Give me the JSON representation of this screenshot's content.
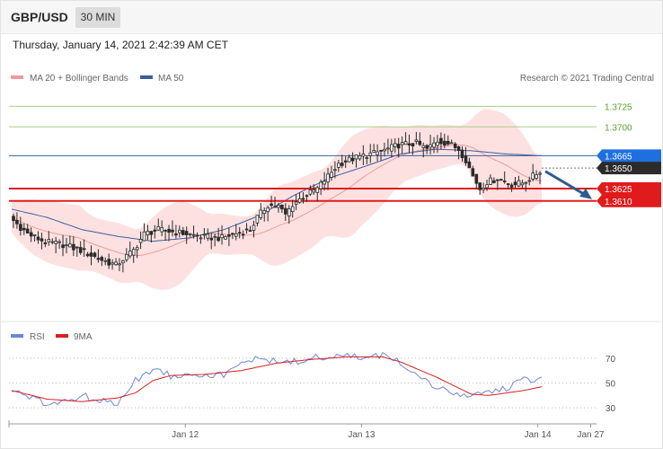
{
  "header": {
    "symbol": "GBP/USD",
    "timeframe": "30 MIN",
    "timestamp": "Thursday, January 14, 2021 2:42:39 AM CET"
  },
  "colors": {
    "bollinger_fill": "#fcd9d9",
    "ma20": "#f09a9a",
    "ma50": "#3a5f9e",
    "candle": "#2a2a2a",
    "resistance_green": "#a8d08a",
    "support_red": "#dd1e1e",
    "blue_label": "#1f6fe0",
    "dark_label": "#2b2b2b",
    "red_label": "#e01b1b",
    "rsi": "#6f86d6",
    "rsi_ma": "#d62020",
    "arrow": "#2e5a8f"
  },
  "chart_data": [
    {
      "type": "candlestick",
      "legend": [
        {
          "label": "MA 20 + Bollinger Bands",
          "color": "#f09a9a"
        },
        {
          "label": "MA 50",
          "color": "#3a5f9e"
        }
      ],
      "credit": "Research © 2021 Trading Central",
      "ylim": [
        1.3505,
        1.3745
      ],
      "levels": [
        {
          "value": 1.3725,
          "label": "1.3725",
          "style": "resistance"
        },
        {
          "value": 1.37,
          "label": "1.3700",
          "style": "resistance"
        },
        {
          "value": 1.3665,
          "label": "1.3665",
          "style": "ma50"
        },
        {
          "value": 1.365,
          "label": "1.3650",
          "style": "last"
        },
        {
          "value": 1.3625,
          "label": "1.3625",
          "style": "support"
        },
        {
          "value": 1.361,
          "label": "1.3610",
          "style": "support"
        }
      ],
      "close_path": [
        [
          0,
          1.359
        ],
        [
          5,
          1.357
        ],
        [
          10,
          1.356
        ],
        [
          15,
          1.3557
        ],
        [
          20,
          1.355
        ],
        [
          25,
          1.354
        ],
        [
          30,
          1.3532
        ],
        [
          35,
          1.355
        ],
        [
          38,
          1.357
        ],
        [
          42,
          1.3575
        ],
        [
          50,
          1.357
        ],
        [
          55,
          1.3566
        ],
        [
          60,
          1.3565
        ],
        [
          65,
          1.3572
        ],
        [
          68,
          1.3575
        ],
        [
          70,
          1.359
        ],
        [
          73,
          1.3605
        ],
        [
          76,
          1.3603
        ],
        [
          78,
          1.3593
        ],
        [
          80,
          1.3606
        ],
        [
          83,
          1.3615
        ],
        [
          87,
          1.3625
        ],
        [
          90,
          1.364
        ],
        [
          93,
          1.3655
        ],
        [
          96,
          1.366
        ],
        [
          100,
          1.3665
        ],
        [
          105,
          1.367
        ],
        [
          110,
          1.3678
        ],
        [
          115,
          1.368
        ],
        [
          118,
          1.3673
        ],
        [
          121,
          1.3683
        ],
        [
          124,
          1.368
        ],
        [
          127,
          1.3673
        ],
        [
          129,
          1.366
        ],
        [
          131,
          1.364
        ],
        [
          133,
          1.3625
        ],
        [
          135,
          1.3633
        ],
        [
          138,
          1.3637
        ],
        [
          142,
          1.363
        ],
        [
          145,
          1.3632
        ],
        [
          148,
          1.364
        ],
        [
          150,
          1.3646
        ]
      ],
      "ma50_path": [
        [
          0,
          1.36
        ],
        [
          10,
          1.359
        ],
        [
          20,
          1.3575
        ],
        [
          30,
          1.3567
        ],
        [
          40,
          1.3561
        ],
        [
          50,
          1.3565
        ],
        [
          60,
          1.3575
        ],
        [
          70,
          1.3592
        ],
        [
          80,
          1.3617
        ],
        [
          90,
          1.3638
        ],
        [
          100,
          1.3652
        ],
        [
          110,
          1.3667
        ],
        [
          115,
          1.367
        ],
        [
          120,
          1.3673
        ],
        [
          130,
          1.3671
        ],
        [
          140,
          1.3667
        ],
        [
          150,
          1.3665
        ]
      ],
      "n_candles": 150
    },
    {
      "type": "line",
      "legend": [
        {
          "label": "RSI",
          "color": "#6f86d6"
        },
        {
          "label": "9MA",
          "color": "#d62020"
        }
      ],
      "ylim": [
        20,
        80
      ],
      "y_ticks": [
        70,
        50,
        30
      ],
      "x_ticks": [
        {
          "label": "Jan 12",
          "pos": 0.3
        },
        {
          "label": "Jan 13",
          "pos": 0.6
        },
        {
          "label": "Jan 14",
          "pos": 0.9
        },
        {
          "label": "Jan 27",
          "pos": 0.99
        }
      ],
      "rsi_path": [
        [
          0,
          45
        ],
        [
          5,
          38
        ],
        [
          10,
          33
        ],
        [
          15,
          35
        ],
        [
          20,
          40
        ],
        [
          25,
          35
        ],
        [
          30,
          34
        ],
        [
          35,
          52
        ],
        [
          40,
          62
        ],
        [
          45,
          56
        ],
        [
          50,
          58
        ],
        [
          55,
          57
        ],
        [
          60,
          56
        ],
        [
          65,
          65
        ],
        [
          70,
          72
        ],
        [
          75,
          66
        ],
        [
          80,
          67
        ],
        [
          85,
          70
        ],
        [
          90,
          71
        ],
        [
          95,
          72
        ],
        [
          100,
          70
        ],
        [
          105,
          72
        ],
        [
          108,
          69
        ],
        [
          112,
          63
        ],
        [
          115,
          58
        ],
        [
          118,
          50
        ],
        [
          121,
          45
        ],
        [
          124,
          42
        ],
        [
          127,
          40
        ],
        [
          130,
          41
        ],
        [
          135,
          42
        ],
        [
          140,
          46
        ],
        [
          145,
          52
        ],
        [
          150,
          54
        ]
      ],
      "rsi_ma_path": [
        [
          0,
          44
        ],
        [
          10,
          37
        ],
        [
          20,
          35
        ],
        [
          30,
          38
        ],
        [
          35,
          42
        ],
        [
          40,
          52
        ],
        [
          45,
          56
        ],
        [
          55,
          57
        ],
        [
          65,
          60
        ],
        [
          75,
          66
        ],
        [
          85,
          69
        ],
        [
          95,
          71
        ],
        [
          105,
          71
        ],
        [
          110,
          67
        ],
        [
          115,
          61
        ],
        [
          120,
          55
        ],
        [
          125,
          48
        ],
        [
          130,
          41
        ],
        [
          135,
          40
        ],
        [
          140,
          42
        ],
        [
          145,
          44
        ],
        [
          150,
          47
        ]
      ]
    }
  ]
}
